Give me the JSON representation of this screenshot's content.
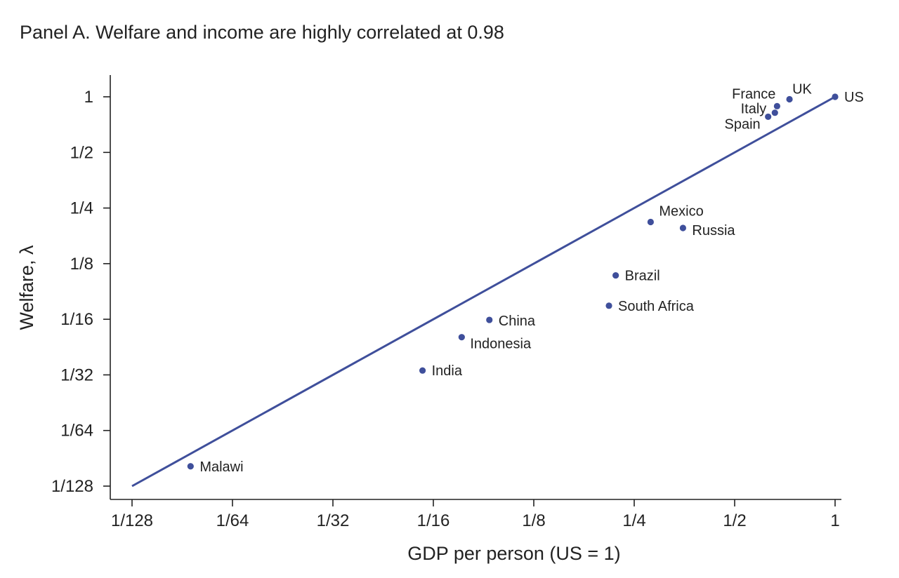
{
  "chart_data": {
    "type": "scatter",
    "title": "Panel A. Welfare and income are highly correlated at 0.98",
    "xlabel": "GDP per person (US = 1)",
    "ylabel": "Welfare, λ",
    "xscale": "log2",
    "yscale": "log2",
    "xlim": [
      0.0078125,
      1
    ],
    "ylim": [
      0.0078125,
      1
    ],
    "xticks": [
      0.0078125,
      0.015625,
      0.03125,
      0.0625,
      0.125,
      0.25,
      0.5,
      1
    ],
    "yticks": [
      0.0078125,
      0.015625,
      0.03125,
      0.0625,
      0.125,
      0.25,
      0.5,
      1
    ],
    "xtick_labels": [
      "1/128",
      "1/64",
      "1/32",
      "1/16",
      "1/8",
      "1/4",
      "1/2",
      "1"
    ],
    "ytick_labels": [
      "1/128",
      "1/64",
      "1/32",
      "1/16",
      "1/8",
      "1/4",
      "1/2",
      "1"
    ],
    "grid": false,
    "fit_line": {
      "x": [
        0.0078125,
        1
      ],
      "y": [
        0.0078125,
        1
      ]
    },
    "points": [
      {
        "label": "US",
        "x": 1.0,
        "y": 1.0
      },
      {
        "label": "UK",
        "x": 0.73,
        "y": 0.97
      },
      {
        "label": "France",
        "x": 0.67,
        "y": 0.89
      },
      {
        "label": "Italy",
        "x": 0.66,
        "y": 0.82
      },
      {
        "label": "Spain",
        "x": 0.63,
        "y": 0.78
      },
      {
        "label": "Mexico",
        "x": 0.28,
        "y": 0.21
      },
      {
        "label": "Russia",
        "x": 0.35,
        "y": 0.195
      },
      {
        "label": "Brazil",
        "x": 0.22,
        "y": 0.108
      },
      {
        "label": "South Africa",
        "x": 0.21,
        "y": 0.074
      },
      {
        "label": "China",
        "x": 0.092,
        "y": 0.062
      },
      {
        "label": "Indonesia",
        "x": 0.076,
        "y": 0.05
      },
      {
        "label": "India",
        "x": 0.058,
        "y": 0.033
      },
      {
        "label": "Malawi",
        "x": 0.0117,
        "y": 0.01
      }
    ],
    "colors": {
      "marker": "#3f4f9b",
      "line": "#3f4f9b",
      "axis": "#222222",
      "text": "#222222"
    }
  }
}
